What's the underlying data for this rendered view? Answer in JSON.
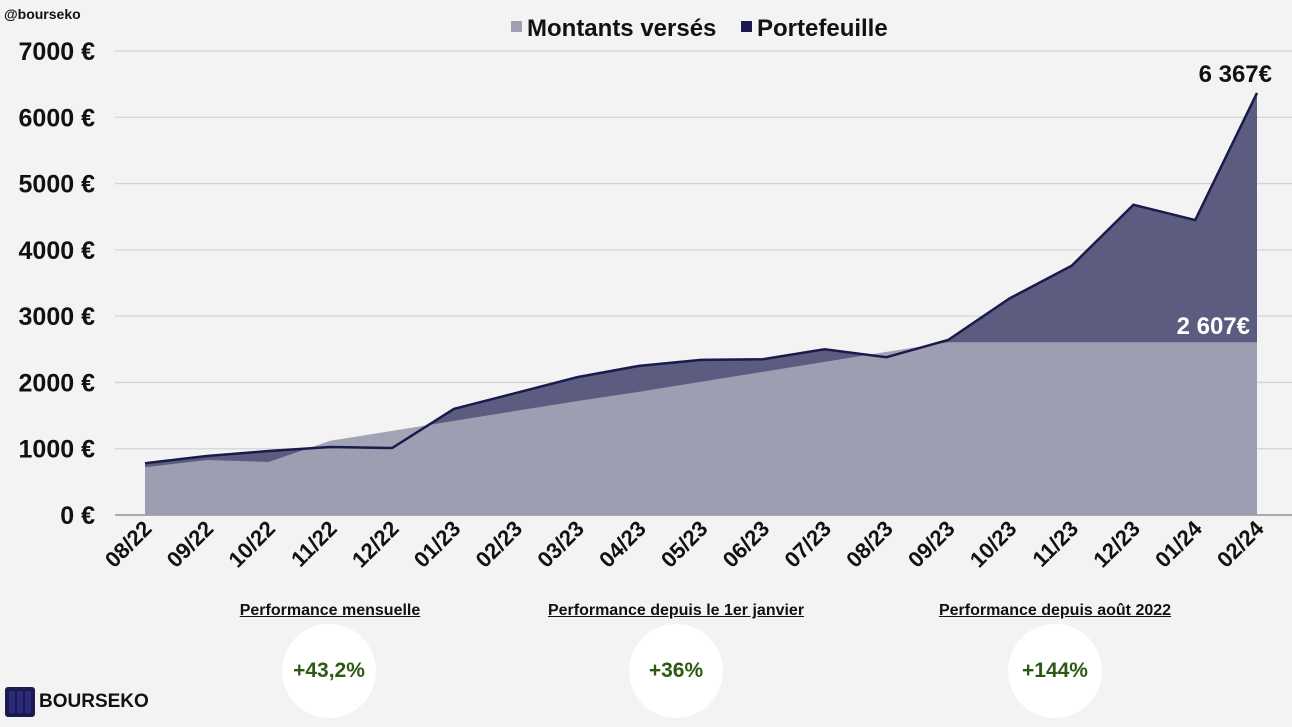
{
  "handle": "@bourseko",
  "brand": "BOURSEKO",
  "chart_data": {
    "type": "area",
    "categories": [
      "08/22",
      "09/22",
      "10/22",
      "11/22",
      "12/22",
      "01/23",
      "02/23",
      "03/23",
      "04/23",
      "05/23",
      "06/23",
      "07/23",
      "08/23",
      "09/23",
      "10/23",
      "11/23",
      "12/23",
      "01/24",
      "02/24"
    ],
    "series": [
      {
        "name": "Montants versés",
        "color": "#a0a0b4",
        "values": [
          720,
          830,
          800,
          1120,
          1270,
          1420,
          1570,
          1720,
          1860,
          2010,
          2160,
          2310,
          2460,
          2607,
          2607,
          2607,
          2607,
          2607,
          2607
        ]
      },
      {
        "name": "Portefeuille",
        "color": "#5c5c80",
        "line_color": "#1a1a4d",
        "values": [
          780,
          890,
          965,
          1025,
          1010,
          1600,
          1840,
          2080,
          2250,
          2340,
          2350,
          2500,
          2380,
          2640,
          3270,
          3760,
          4680,
          4450,
          6367
        ]
      }
    ],
    "ylim": [
      0,
      7000
    ],
    "yticks": [
      "0 €",
      "1000 €",
      "2000 €",
      "3000 €",
      "4000 €",
      "5000 €",
      "6000 €",
      "7000 €"
    ],
    "grid": true,
    "legend": "top",
    "annotations": {
      "portefeuille_last": "6 367€",
      "verses_last": "2 607€"
    }
  },
  "performance": [
    {
      "title": "Performance mensuelle",
      "value": "+43,2%"
    },
    {
      "title": "Performance depuis le 1er janvier",
      "value": "+36%"
    },
    {
      "title": "Performance depuis août 2022",
      "value": "+144%"
    }
  ]
}
